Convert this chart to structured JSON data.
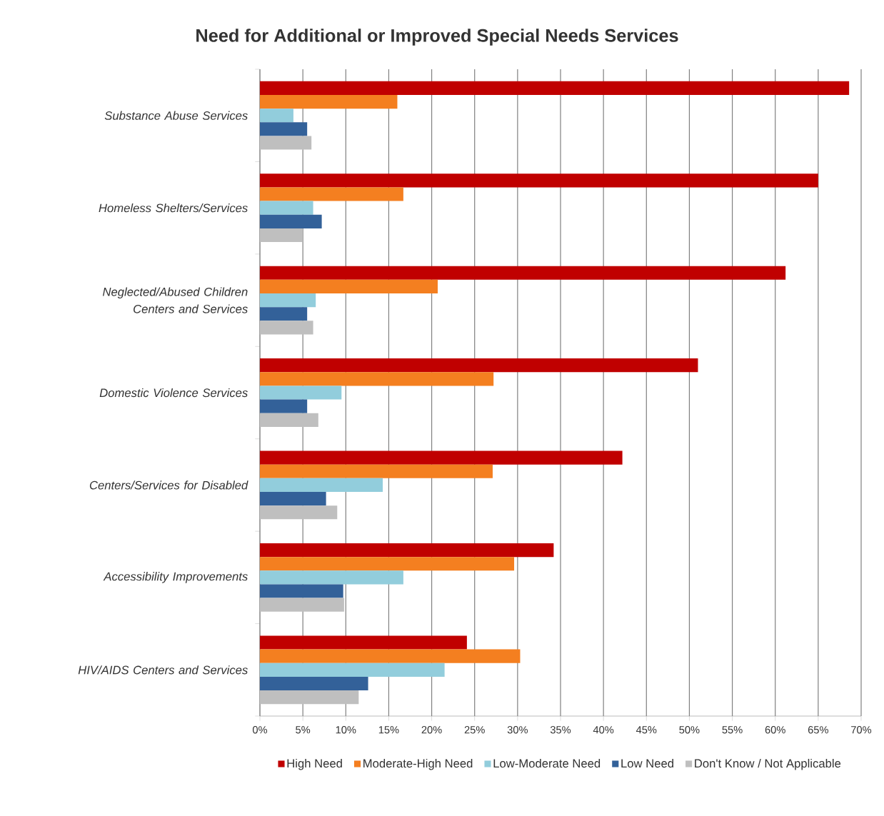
{
  "chart_data": {
    "type": "bar",
    "orientation": "horizontal",
    "title": "Need for Additional or Improved Special Needs Services",
    "categories": [
      "Substance Abuse Services",
      "Homeless Shelters/Services",
      "Neglected/Abused Children Centers and Services",
      "Domestic Violence Services",
      "Centers/Services for Disabled",
      "Accessibility Improvements",
      "HIV/AIDS Centers and Services"
    ],
    "series": [
      {
        "name": "High Need",
        "color": "#c00000",
        "values": [
          68.6,
          65.0,
          61.2,
          51.0,
          42.2,
          34.2,
          24.1
        ]
      },
      {
        "name": "Moderate-High Need",
        "color": "#f47f20",
        "values": [
          16.0,
          16.7,
          20.7,
          27.2,
          27.1,
          29.6,
          30.3
        ]
      },
      {
        "name": "Low-Moderate Need",
        "color": "#92cddc",
        "values": [
          3.9,
          6.2,
          6.5,
          9.5,
          14.3,
          16.7,
          21.5
        ]
      },
      {
        "name": "Low Need",
        "color": "#336199",
        "values": [
          5.5,
          7.2,
          5.5,
          5.5,
          7.7,
          9.7,
          12.6
        ]
      },
      {
        "name": "Don't Know / Not Applicable",
        "color": "#bfbfbf",
        "values": [
          6.0,
          5.0,
          6.2,
          6.8,
          9.0,
          9.8,
          11.5
        ]
      }
    ],
    "xlim": [
      0,
      70
    ],
    "xticks": [
      {
        "value": 0,
        "label": "0%"
      },
      {
        "value": 5,
        "label": "5%"
      },
      {
        "value": 10,
        "label": "10%"
      },
      {
        "value": 15,
        "label": "15%"
      },
      {
        "value": 20,
        "label": "20%"
      },
      {
        "value": 25,
        "label": "25%"
      },
      {
        "value": 30,
        "label": "30%"
      },
      {
        "value": 35,
        "label": "35%"
      },
      {
        "value": 40,
        "label": "40%"
      },
      {
        "value": 45,
        "label": "45%"
      },
      {
        "value": 50,
        "label": "50%"
      },
      {
        "value": 55,
        "label": "55%"
      },
      {
        "value": 60,
        "label": "60%"
      },
      {
        "value": 65,
        "label": "65%"
      },
      {
        "value": 70,
        "label": "70%"
      }
    ],
    "grid": "x",
    "legend": "bottom"
  }
}
